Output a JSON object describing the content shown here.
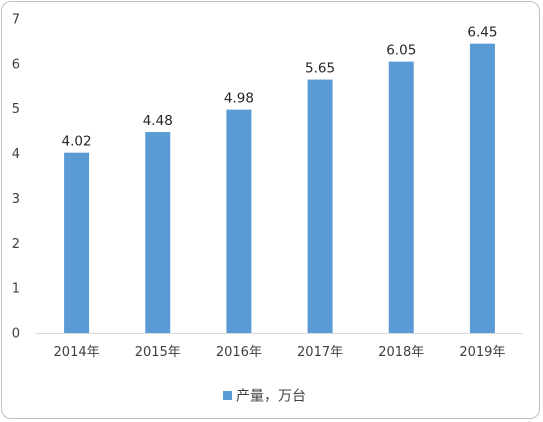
{
  "chart_data": {
    "type": "bar",
    "categories": [
      "2014年",
      "2015年",
      "2016年",
      "2017年",
      "2018年",
      "2019年"
    ],
    "series": [
      {
        "name": "产量，万台",
        "values": [
          4.02,
          4.48,
          4.98,
          5.65,
          6.05,
          6.45
        ]
      }
    ],
    "data_labels": [
      "4.02",
      "4.48",
      "4.98",
      "5.65",
      "6.05",
      "6.45"
    ],
    "y_ticks": [
      "0",
      "1",
      "2",
      "3",
      "4",
      "5",
      "6",
      "7"
    ],
    "ylim": [
      0,
      7
    ],
    "grid": false,
    "legend_position": "bottom",
    "bar_color": "#5b9bd5",
    "title": "",
    "xlabel": "",
    "ylabel": ""
  }
}
